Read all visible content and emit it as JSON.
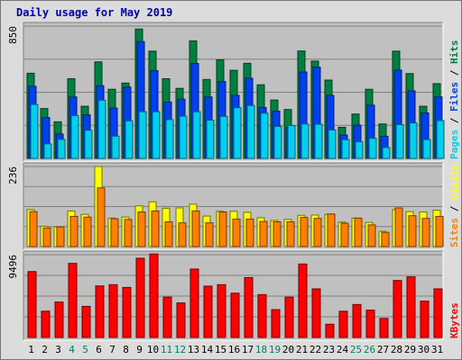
{
  "chart_data": [
    {
      "type": "bar",
      "title": "Daily usage for May 2019",
      "panel": "hits",
      "ymax_label": "850",
      "legend": [
        "Pages",
        "Files",
        "Hits"
      ],
      "legend_colors": [
        "#00d0f0",
        "#0040f0",
        "#008040"
      ],
      "categories": [
        "1",
        "2",
        "3",
        "4",
        "5",
        "6",
        "7",
        "8",
        "9",
        "10",
        "11",
        "12",
        "13",
        "14",
        "15",
        "16",
        "17",
        "18",
        "19",
        "20",
        "21",
        "22",
        "23",
        "24",
        "25",
        "26",
        "27",
        "28",
        "29",
        "30",
        "31"
      ],
      "ylim": [
        0,
        850
      ],
      "series": [
        {
          "name": "Hits",
          "values": [
            547,
            320,
            235,
            512,
            335,
            620,
            444,
            484,
            831,
            689,
            512,
            450,
            755,
            507,
            633,
            566,
            611,
            473,
            375,
            314,
            690,
            625,
            503,
            200,
            285,
            444,
            221,
            689,
            545,
            335,
            480
          ]
        },
        {
          "name": "Files",
          "values": [
            463,
            262,
            157,
            395,
            280,
            467,
            323,
            458,
            750,
            564,
            362,
            380,
            610,
            395,
            494,
            405,
            515,
            327,
            303,
            198,
            555,
            586,
            405,
            150,
            213,
            342,
            142,
            567,
            434,
            292,
            395
          ]
        },
        {
          "name": "Pages",
          "values": [
            346,
            93,
            122,
            275,
            181,
            374,
            143,
            241,
            300,
            300,
            249,
            271,
            300,
            246,
            270,
            326,
            340,
            290,
            205,
            211,
            221,
            219,
            183,
            120,
            107,
            129,
            70,
            217,
            228,
            121,
            243
          ]
        }
      ]
    },
    {
      "type": "bar",
      "panel": "visits",
      "ymax_label": "236",
      "legend": [
        "Sites",
        "Visits"
      ],
      "legend_colors": [
        "#ff8000",
        "#ffff00"
      ],
      "categories": [
        "1",
        "2",
        "3",
        "4",
        "5",
        "6",
        "7",
        "8",
        "9",
        "10",
        "11",
        "12",
        "13",
        "14",
        "15",
        "16",
        "17",
        "18",
        "19",
        "20",
        "21",
        "22",
        "23",
        "24",
        "25",
        "26",
        "27",
        "28",
        "29",
        "30",
        "31"
      ],
      "ylim": [
        0,
        236
      ],
      "series": [
        {
          "name": "Visits",
          "values": [
            109,
            60,
            58,
            105,
            95,
            236,
            84,
            87,
            120,
            132,
            113,
            114,
            125,
            90,
            104,
            104,
            101,
            85,
            77,
            80,
            92,
            93,
            95,
            72,
            84,
            71,
            45,
            109,
            103,
            102,
            107
          ]
        },
        {
          "name": "Sites",
          "values": [
            103,
            55,
            58,
            89,
            87,
            173,
            82,
            80,
            102,
            105,
            73,
            70,
            105,
            70,
            102,
            81,
            81,
            74,
            73,
            73,
            86,
            83,
            96,
            69,
            84,
            64,
            42,
            114,
            91,
            83,
            89
          ]
        }
      ]
    },
    {
      "type": "bar",
      "panel": "kbytes",
      "ymax_label": "9496",
      "legend": [
        "KBytes"
      ],
      "legend_colors": [
        "#ff0000"
      ],
      "categories": [
        "1",
        "2",
        "3",
        "4",
        "5",
        "6",
        "7",
        "8",
        "9",
        "10",
        "11",
        "12",
        "13",
        "14",
        "15",
        "16",
        "17",
        "18",
        "19",
        "20",
        "21",
        "22",
        "23",
        "24",
        "25",
        "26",
        "27",
        "28",
        "29",
        "30",
        "31"
      ],
      "ylim": [
        0,
        9496
      ],
      "series": [
        {
          "name": "KBytes",
          "values": [
            7560,
            3015,
            4070,
            8500,
            3570,
            5915,
            6055,
            5740,
            9085,
            9575,
            4630,
            3965,
            7850,
            5890,
            6055,
            5080,
            6870,
            4920,
            3195,
            4630,
            8430,
            5575,
            1520,
            3010,
            3785,
            3140,
            2190,
            6540,
            6955,
            4170,
            5580
          ]
        }
      ]
    }
  ],
  "x_tick_weekend": [
    "4",
    "5",
    "11",
    "12",
    "18",
    "19",
    "25",
    "26"
  ],
  "colors": {
    "title": "#0000b0",
    "weekday_tick": "#000000",
    "weekend_tick": "#00805a",
    "panel_bg": "#c0c0c0",
    "frame_bg": "#dcdcdc",
    "gridline": "#808080"
  }
}
